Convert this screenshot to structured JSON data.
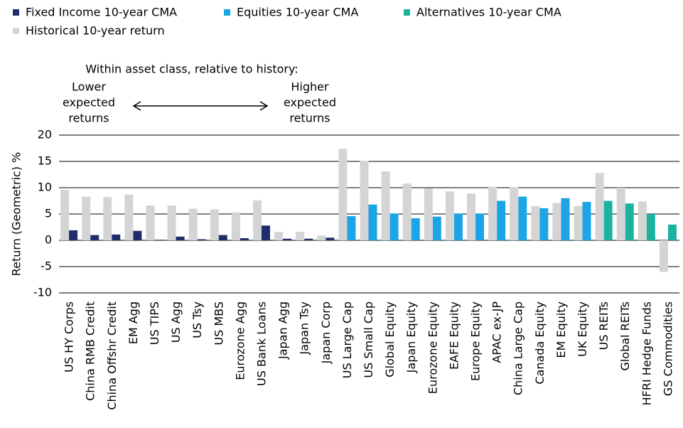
{
  "chart_data": {
    "type": "bar",
    "y_label": "Return (Geometric) %",
    "annotations": {
      "header": "Within asset class, relative to history:",
      "left": [
        "Lower",
        "expected",
        "returns"
      ],
      "right": [
        "Higher",
        "expected",
        "returns"
      ]
    },
    "categories": [
      "US HY Corps",
      "China RMB Credit",
      "China Offshr Credit",
      "EM Agg",
      "US TIPS",
      "US Agg",
      "US Tsy",
      "US MBS",
      "Eurozone Agg",
      "US Bank Loans",
      "Japan Agg",
      "Japan Tsy",
      "Japan Corp",
      "US Large Cap",
      "US Small Cap",
      "Global Equity",
      "Japan Equity",
      "Eurozone Equity",
      "EAFE Equity",
      "Europe Equity",
      "APAC ex-JP",
      "China Large Cap",
      "Canada Equity",
      "EM Equity",
      "UK Equity",
      "US REITs",
      "Global REITs",
      "HFRI Hedge Funds",
      "GS Commodities"
    ],
    "series": [
      {
        "name": "Fixed Income 10-year CMA",
        "color": "#1f2d6b",
        "values": [
          1.9,
          1.0,
          1.1,
          1.8,
          0.1,
          0.7,
          0.2,
          1.0,
          0.4,
          2.8,
          0.3,
          0.3,
          0.5,
          null,
          null,
          null,
          null,
          null,
          null,
          null,
          null,
          null,
          null,
          null,
          null,
          null,
          null,
          null,
          null
        ]
      },
      {
        "name": "Equities 10-year CMA",
        "color": "#1ba4e6",
        "values": [
          null,
          null,
          null,
          null,
          null,
          null,
          null,
          null,
          null,
          null,
          null,
          null,
          null,
          4.6,
          6.8,
          5.1,
          4.2,
          4.5,
          5.1,
          5.1,
          7.5,
          8.3,
          6.1,
          8.0,
          7.3,
          null,
          null,
          null,
          null
        ]
      },
      {
        "name": "Alternatives 10-year CMA",
        "color": "#1bb3a0",
        "values": [
          null,
          null,
          null,
          null,
          null,
          null,
          null,
          null,
          null,
          null,
          null,
          null,
          null,
          null,
          null,
          null,
          null,
          null,
          null,
          null,
          null,
          null,
          null,
          null,
          null,
          7.5,
          7.0,
          5.0,
          3.0
        ]
      },
      {
        "name": "Historical 10-year return",
        "color": "#d4d4d4",
        "values": [
          9.6,
          8.3,
          8.2,
          8.7,
          6.6,
          6.6,
          6.0,
          5.9,
          5.3,
          7.6,
          1.6,
          1.6,
          0.9,
          17.4,
          15.1,
          13.1,
          10.8,
          9.9,
          9.3,
          8.9,
          10.2,
          10.1,
          6.5,
          7.1,
          6.5,
          12.8,
          10.0,
          7.4,
          -6.0
        ]
      }
    ],
    "ylim": [
      -10,
      20
    ],
    "yticks": [
      -10,
      -5,
      0,
      5,
      10,
      15,
      20
    ],
    "grid": true
  }
}
